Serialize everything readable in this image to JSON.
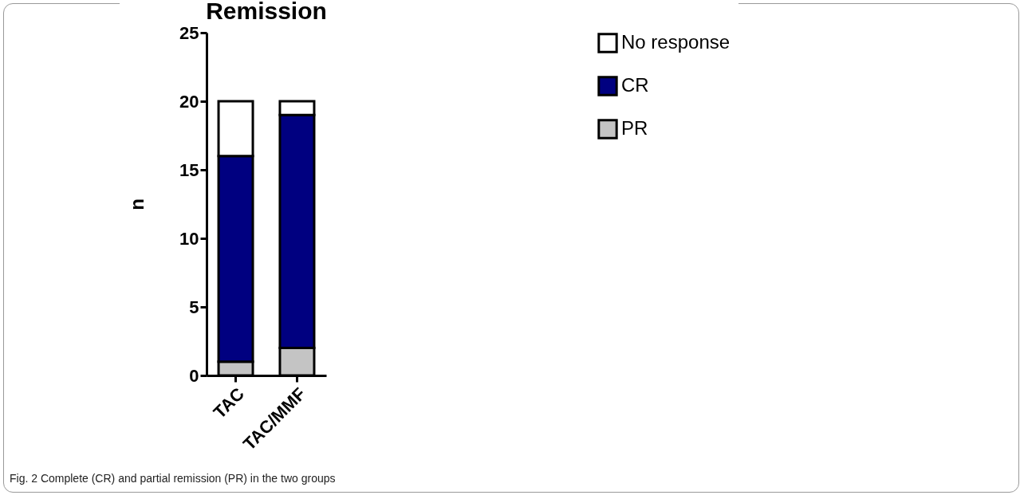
{
  "chart_data": {
    "type": "bar",
    "title": "Remission",
    "ylabel": "n",
    "categories": [
      "TAC",
      "TAC/MMF"
    ],
    "stacked": true,
    "series": [
      {
        "name": "PR",
        "color": "#c4c4c4",
        "values": [
          1,
          2
        ]
      },
      {
        "name": "CR",
        "color": "#000080",
        "values": [
          15,
          17
        ]
      },
      {
        "name": "No response",
        "color": "#ffffff",
        "values": [
          4,
          1
        ]
      }
    ],
    "ylim": [
      0,
      25
    ],
    "yticks": [
      0,
      5,
      10,
      15,
      20,
      25
    ],
    "grid": false,
    "legend": "top right",
    "annotations": [
      "Fig. 2 Complete (CR) and partial remission (PR) in the two groups"
    ]
  }
}
